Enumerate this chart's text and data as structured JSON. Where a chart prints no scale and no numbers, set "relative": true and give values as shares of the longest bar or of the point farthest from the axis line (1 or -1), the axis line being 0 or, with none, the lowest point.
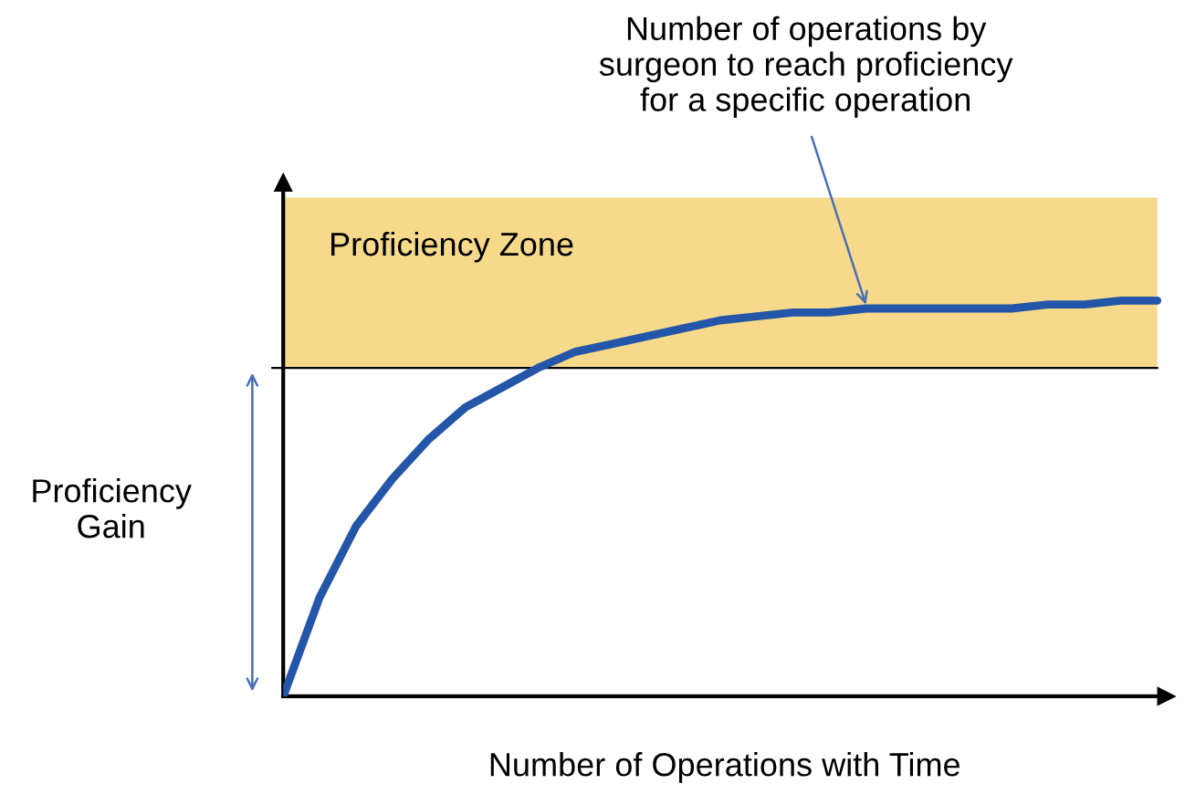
{
  "chart_data": {
    "type": "line",
    "relative": true,
    "xlabel": "Number of Operations with Time",
    "ylabel": "Proficiency\nGain",
    "categories": [
      null,
      null,
      null,
      null,
      null,
      null,
      null,
      null,
      null,
      null,
      null,
      null,
      null,
      null,
      null,
      null,
      null,
      null,
      null,
      null,
      null,
      null,
      null,
      null,
      null
    ],
    "series": [
      {
        "color": "#2356a8",
        "values": [
          0,
          0.25,
          0.43,
          0.55,
          0.65,
          0.73,
          0.78,
          0.83,
          0.87,
          0.89,
          0.91,
          0.93,
          0.95,
          0.96,
          0.97,
          0.97,
          0.98,
          0.98,
          0.98,
          0.98,
          0.98,
          0.99,
          0.99,
          1.0,
          1.0
        ]
      }
    ],
    "bands": [
      {
        "axis": "y",
        "from": 0.83,
        "to": 1.26,
        "label": "Proficiency Zone",
        "color": "#f6d98a"
      }
    ],
    "ref_lines": [
      {
        "axis": "y",
        "value": 0.83,
        "color": "#000000"
      }
    ],
    "annotations": [
      "Number of operations by\nsurgeon to reach proficiency\nfor a specific operation"
    ],
    "legend": false,
    "marker": "none",
    "line_style": "solid"
  }
}
